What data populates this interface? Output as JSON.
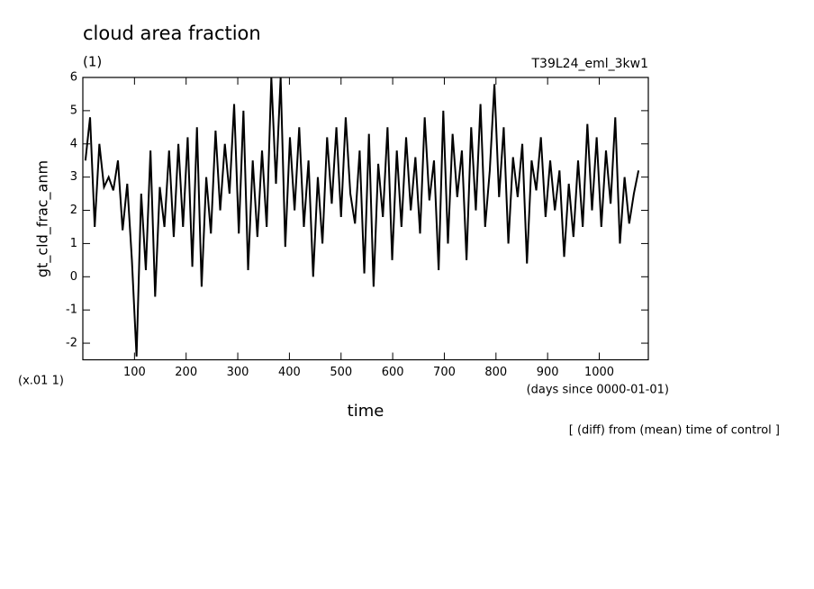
{
  "chart_data": {
    "type": "line",
    "title": "cloud area fraction",
    "subtitle": "(1)",
    "run_label": "T39L24_eml_3kw1",
    "y_label": "gt_cld_frac_anm",
    "y_unit": "(x.01 1)",
    "x_unit": "(days since 0000-01-01)",
    "x_label": "time",
    "note": "[ (diff) from (mean) time of control ]",
    "xlim": [
      0,
      1095
    ],
    "ylim": [
      -2.5,
      6
    ],
    "xticks": [
      100,
      200,
      300,
      400,
      500,
      600,
      700,
      800,
      900,
      1000
    ],
    "yticks": [
      -2,
      -1,
      0,
      1,
      2,
      3,
      4,
      5,
      6
    ],
    "x": [
      5,
      14,
      23,
      32,
      41,
      50,
      59,
      68,
      77,
      86,
      95,
      104,
      113,
      122,
      131,
      140,
      149,
      158,
      167,
      176,
      185,
      194,
      203,
      212,
      221,
      230,
      239,
      248,
      257,
      266,
      275,
      284,
      293,
      302,
      311,
      320,
      329,
      338,
      347,
      356,
      365,
      374,
      383,
      392,
      401,
      410,
      419,
      428,
      437,
      446,
      455,
      464,
      473,
      482,
      491,
      500,
      509,
      518,
      527,
      536,
      545,
      554,
      563,
      572,
      581,
      590,
      599,
      608,
      617,
      626,
      635,
      644,
      653,
      662,
      671,
      680,
      689,
      698,
      707,
      716,
      725,
      734,
      743,
      752,
      761,
      770,
      779,
      788,
      797,
      806,
      815,
      824,
      833,
      842,
      851,
      860,
      869,
      878,
      887,
      896,
      905,
      914,
      923,
      932,
      941,
      950,
      959,
      968,
      977,
      986,
      995,
      1004,
      1013,
      1022,
      1031,
      1040,
      1049,
      1058,
      1067,
      1076
    ],
    "series": [
      {
        "color": "#000000",
        "values": [
          3.5,
          4.8,
          1.5,
          4.0,
          2.7,
          3.0,
          2.6,
          3.5,
          1.4,
          2.8,
          0.5,
          -2.4,
          2.5,
          0.2,
          3.8,
          -0.6,
          2.7,
          1.5,
          3.8,
          1.2,
          4.0,
          1.5,
          4.2,
          0.3,
          4.5,
          -0.3,
          3.0,
          1.3,
          4.4,
          2.0,
          4.0,
          2.5,
          5.2,
          1.3,
          5.0,
          0.2,
          3.5,
          1.2,
          3.8,
          1.5,
          6.0,
          2.8,
          6.0,
          0.9,
          4.2,
          2.0,
          4.5,
          1.5,
          3.5,
          0.0,
          3.0,
          1.0,
          4.2,
          2.2,
          4.5,
          1.8,
          4.8,
          2.5,
          1.6,
          3.8,
          0.1,
          4.3,
          -0.3,
          3.4,
          1.8,
          4.5,
          0.5,
          3.8,
          1.5,
          4.2,
          2.0,
          3.6,
          1.3,
          4.8,
          2.3,
          3.5,
          0.2,
          5.0,
          1.0,
          4.3,
          2.4,
          3.8,
          0.5,
          4.5,
          2.0,
          5.2,
          1.5,
          3.2,
          5.8,
          2.4,
          4.5,
          1.0,
          3.6,
          2.4,
          4.0,
          0.4,
          3.5,
          2.6,
          4.2,
          1.8,
          3.5,
          2.0,
          3.2,
          0.6,
          2.8,
          1.2,
          3.5,
          1.5,
          4.6,
          2.0,
          4.2,
          1.5,
          3.8,
          2.2,
          4.8,
          1.0,
          3.0,
          1.6,
          2.5,
          3.2
        ]
      }
    ]
  }
}
